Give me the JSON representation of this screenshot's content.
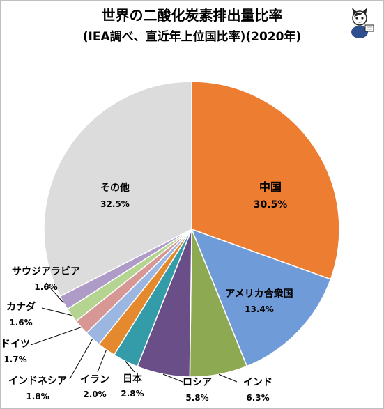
{
  "chart_data": {
    "type": "pie",
    "title": "世界の二酸化炭素排出量比率",
    "subtitle": "(IEA調べ、直近年上位国比率)(2020年)",
    "slices": [
      {
        "name": "中国",
        "value": 30.5,
        "label": "30.5%",
        "color": "#ED7D31"
      },
      {
        "name": "アメリカ合衆国",
        "value": 13.4,
        "label": "13.4%",
        "color": "#6F9BD8"
      },
      {
        "name": "インド",
        "value": 6.3,
        "label": "6.3%",
        "color": "#8DAA52"
      },
      {
        "name": "ロシア",
        "value": 5.8,
        "label": "5.8%",
        "color": "#6A4E87"
      },
      {
        "name": "日本",
        "value": 2.8,
        "label": "2.8%",
        "color": "#349BA8"
      },
      {
        "name": "イラン",
        "value": 2.0,
        "label": "2.0%",
        "color": "#E5892F"
      },
      {
        "name": "インドネシア",
        "value": 1.8,
        "label": "1.8%",
        "color": "#9CB6E2"
      },
      {
        "name": "ドイツ",
        "value": 1.7,
        "label": "1.7%",
        "color": "#D79795"
      },
      {
        "name": "カナダ",
        "value": 1.6,
        "label": "1.6%",
        "color": "#B6D491"
      },
      {
        "name": "サウジアラビア",
        "value": 1.6,
        "label": "1.6%",
        "color": "#AE9BC8"
      },
      {
        "name": "その他",
        "value": 32.5,
        "label": "32.5%",
        "color": "#DCDCDC"
      }
    ]
  },
  "mascot": {
    "name": "cat-mascot-icon"
  }
}
